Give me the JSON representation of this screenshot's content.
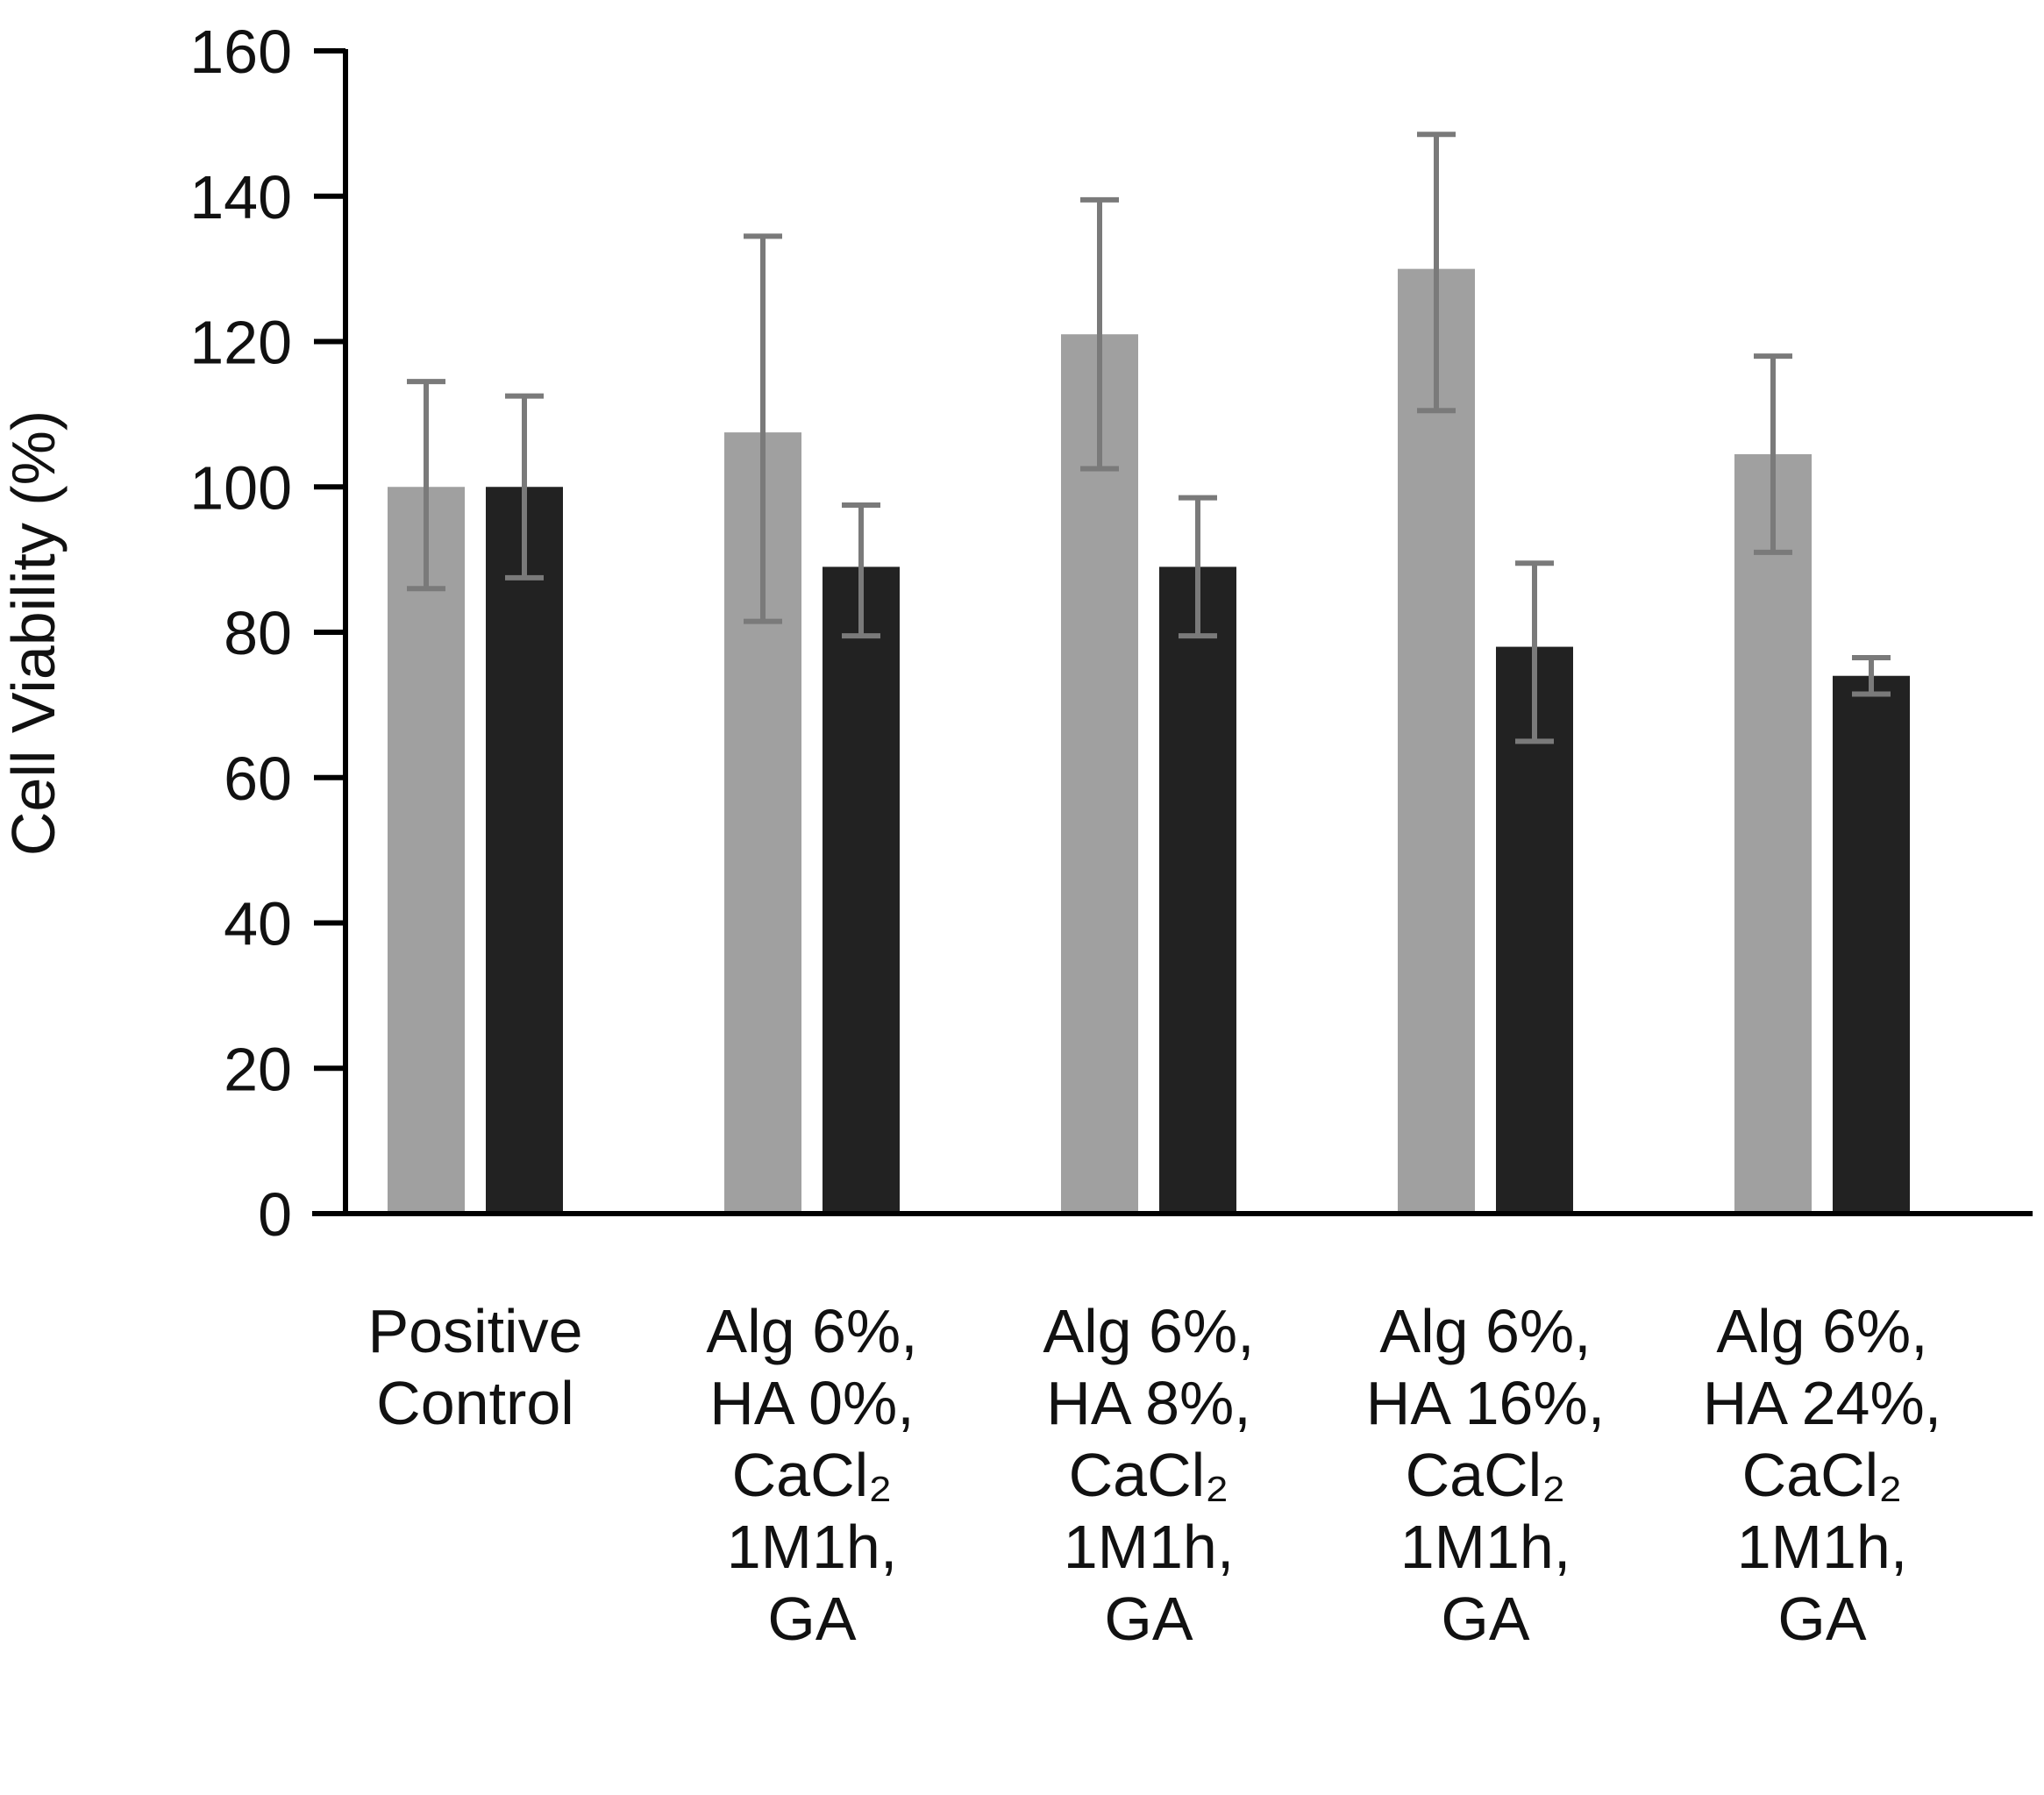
{
  "chart_data": {
    "type": "bar",
    "title": "",
    "xlabel": "",
    "ylabel": "Cell Viability (%)",
    "ylim": [
      0,
      160
    ],
    "yticks": [
      0,
      20,
      40,
      60,
      80,
      100,
      120,
      140,
      160
    ],
    "grid": false,
    "legend": "none",
    "categories": [
      [
        "Positive",
        "Control"
      ],
      [
        "Alg 6%,",
        "HA 0%,",
        "CaCl₂",
        "1M1h,",
        "GA"
      ],
      [
        "Alg 6%,",
        "HA 8%,",
        "CaCl₂",
        "1M1h,",
        "GA"
      ],
      [
        "Alg 6%,",
        "HA 16%,",
        "CaCl₂",
        "1M1h,",
        "GA"
      ],
      [
        "Alg 6%,",
        "HA 24%,",
        "CaCl₂",
        "1M1h,",
        "GA"
      ]
    ],
    "series": [
      {
        "color": "#a0a0a0",
        "values": [
          100,
          107.5,
          121,
          130,
          104.5
        ],
        "error_low": [
          86,
          81.5,
          102.5,
          110.5,
          91
        ],
        "error_high": [
          114.5,
          134.5,
          139.5,
          148.5,
          118
        ]
      },
      {
        "color": "#222222",
        "values": [
          100,
          89,
          89,
          78,
          74
        ],
        "error_low": [
          87.5,
          79.5,
          79.5,
          65,
          71.5
        ],
        "error_high": [
          112.5,
          97.5,
          98.5,
          89.5,
          76.5
        ]
      }
    ],
    "error_bar_color": "#7a7a7a"
  }
}
